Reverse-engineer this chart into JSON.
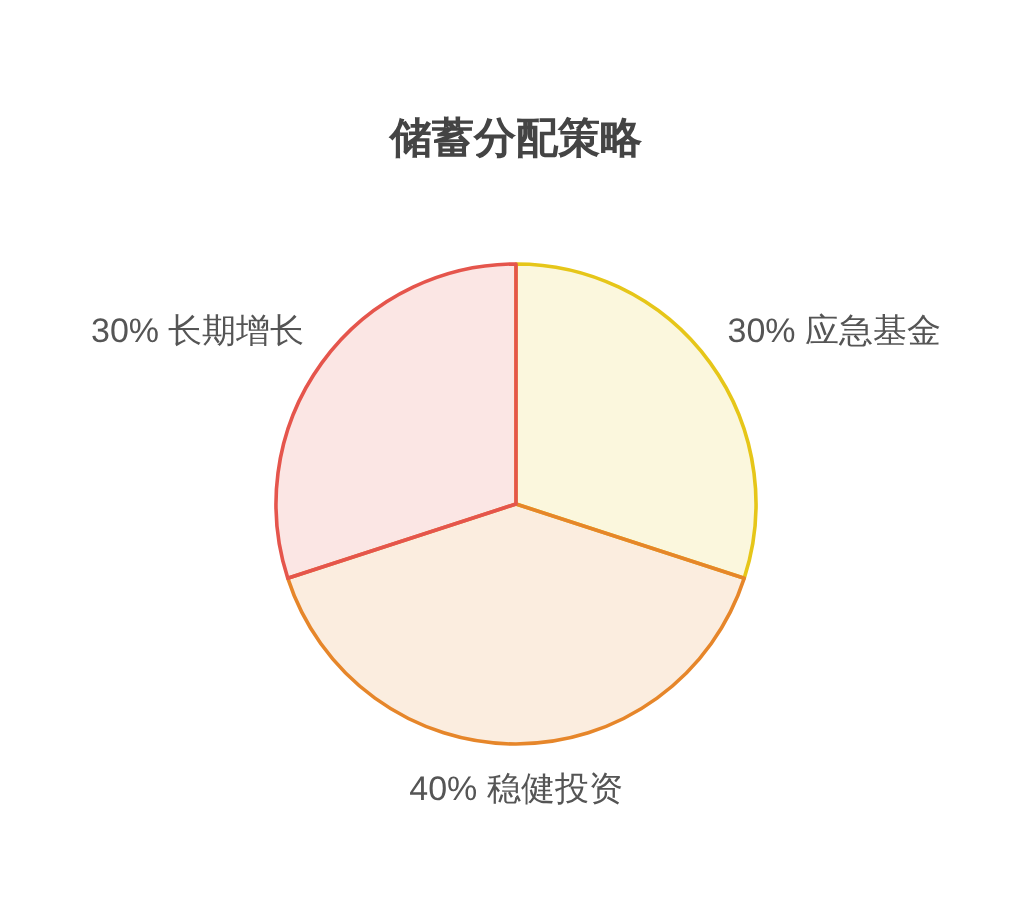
{
  "chart_data": {
    "type": "pie",
    "title": "储蓄分配策略",
    "categories": [
      "应急基金",
      "稳健投资",
      "长期增长"
    ],
    "values": [
      30,
      40,
      30
    ],
    "value_labels": [
      "30%",
      "40%",
      "30%"
    ],
    "colors": [
      "#e6c619",
      "#e6862a",
      "#e5554c"
    ]
  }
}
